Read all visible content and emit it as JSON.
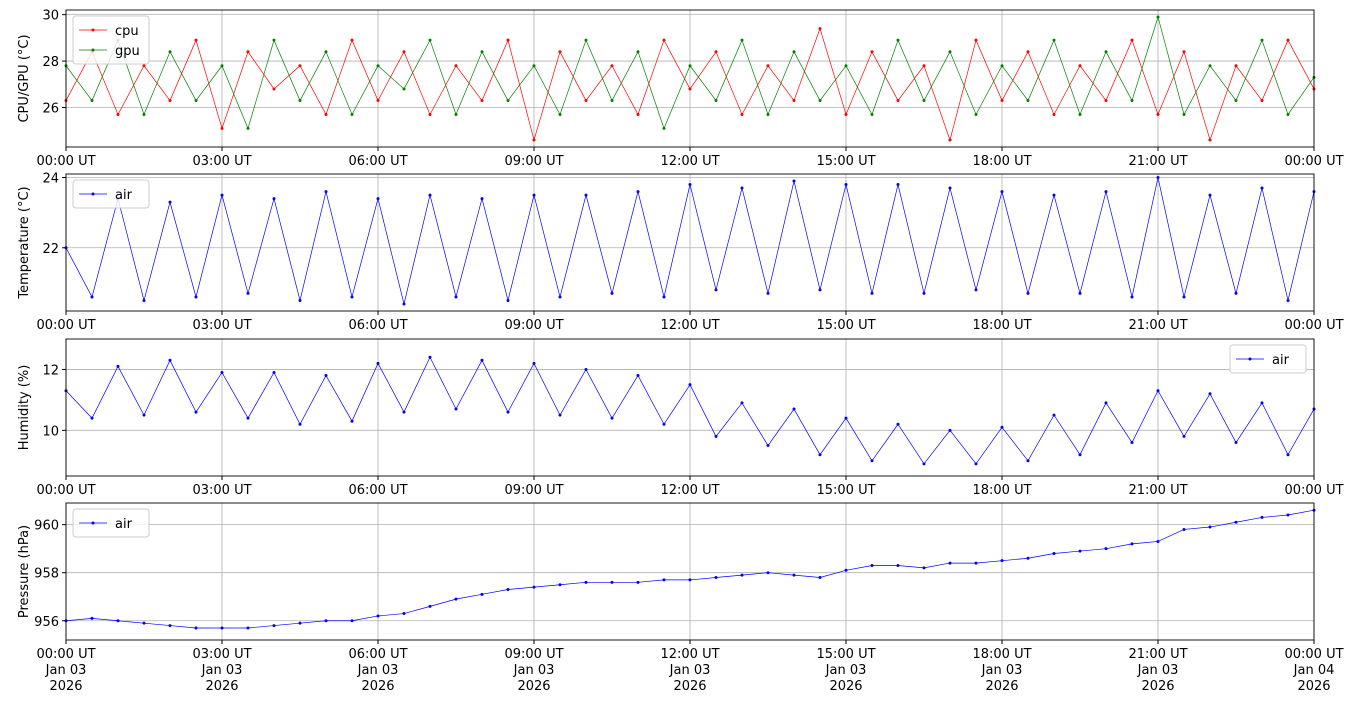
{
  "chart_data": [
    {
      "type": "line",
      "y_label": "CPU/GPU (°C)",
      "legend": "upper left",
      "grid": true,
      "x": [
        0,
        0.5,
        1,
        1.5,
        2,
        2.5,
        3,
        3.5,
        4,
        4.5,
        5,
        5.5,
        6,
        6.5,
        7,
        7.5,
        8,
        8.5,
        9,
        9.5,
        10,
        10.5,
        11,
        11.5,
        12,
        12.5,
        13,
        13.5,
        14,
        14.5,
        15,
        15.5,
        16,
        16.5,
        17,
        17.5,
        18,
        18.5,
        19,
        19.5,
        20,
        20.5,
        21,
        21.5,
        22,
        22.5,
        23,
        23.5,
        24
      ],
      "xlim": [
        0,
        24
      ],
      "xticks": [
        {
          "value": 0,
          "label": "00:00 UT"
        },
        {
          "value": 3,
          "label": "03:00 UT"
        },
        {
          "value": 6,
          "label": "06:00 UT"
        },
        {
          "value": 9,
          "label": "09:00 UT"
        },
        {
          "value": 12,
          "label": "12:00 UT"
        },
        {
          "value": 15,
          "label": "15:00 UT"
        },
        {
          "value": 18,
          "label": "18:00 UT"
        },
        {
          "value": 21,
          "label": "21:00 UT"
        },
        {
          "value": 24,
          "label": "00:00 UT"
        }
      ],
      "ylim": [
        24.3,
        30.2
      ],
      "yticks": [
        26,
        28,
        30
      ],
      "series": [
        {
          "name": "cpu",
          "color": "#ff0000",
          "values": [
            26.3,
            28.4,
            25.7,
            27.8,
            26.3,
            28.9,
            25.1,
            28.4,
            26.8,
            27.8,
            25.7,
            28.9,
            26.3,
            28.4,
            25.7,
            27.8,
            26.3,
            28.9,
            24.6,
            28.4,
            26.3,
            27.8,
            25.7,
            28.9,
            26.8,
            28.4,
            25.7,
            27.8,
            26.3,
            29.4,
            25.7,
            28.4,
            26.3,
            27.8,
            24.6,
            28.9,
            26.3,
            28.4,
            25.7,
            27.8,
            26.3,
            28.9,
            25.7,
            28.4,
            24.6,
            27.8,
            26.3,
            28.9,
            26.8
          ]
        },
        {
          "name": "gpu",
          "color": "#008000",
          "values": [
            27.8,
            26.3,
            28.9,
            25.7,
            28.4,
            26.3,
            27.8,
            25.1,
            28.9,
            26.3,
            28.4,
            25.7,
            27.8,
            26.8,
            28.9,
            25.7,
            28.4,
            26.3,
            27.8,
            25.7,
            28.9,
            26.3,
            28.4,
            25.1,
            27.8,
            26.3,
            28.9,
            25.7,
            28.4,
            26.3,
            27.8,
            25.7,
            28.9,
            26.3,
            28.4,
            25.7,
            27.8,
            26.3,
            28.9,
            25.7,
            28.4,
            26.3,
            29.9,
            25.7,
            27.8,
            26.3,
            28.9,
            25.7,
            27.3
          ]
        }
      ]
    },
    {
      "type": "line",
      "y_label": "Temperature (°C)",
      "legend": "upper left",
      "grid": true,
      "x": [
        0,
        0.5,
        1,
        1.5,
        2,
        2.5,
        3,
        3.5,
        4,
        4.5,
        5,
        5.5,
        6,
        6.5,
        7,
        7.5,
        8,
        8.5,
        9,
        9.5,
        10,
        10.5,
        11,
        11.5,
        12,
        12.5,
        13,
        13.5,
        14,
        14.5,
        15,
        15.5,
        16,
        16.5,
        17,
        17.5,
        18,
        18.5,
        19,
        19.5,
        20,
        20.5,
        21,
        21.5,
        22,
        22.5,
        23,
        23.5,
        24
      ],
      "xlim": [
        0,
        24
      ],
      "xticks": [
        {
          "value": 0,
          "label": "00:00 UT"
        },
        {
          "value": 3,
          "label": "03:00 UT"
        },
        {
          "value": 6,
          "label": "06:00 UT"
        },
        {
          "value": 9,
          "label": "09:00 UT"
        },
        {
          "value": 12,
          "label": "12:00 UT"
        },
        {
          "value": 15,
          "label": "15:00 UT"
        },
        {
          "value": 18,
          "label": "18:00 UT"
        },
        {
          "value": 21,
          "label": "21:00 UT"
        },
        {
          "value": 24,
          "label": "00:00 UT"
        }
      ],
      "ylim": [
        20.2,
        24.1
      ],
      "yticks": [
        22,
        24
      ],
      "series": [
        {
          "name": "air",
          "color": "#0000ff",
          "values": [
            22.0,
            20.6,
            23.4,
            20.5,
            23.3,
            20.6,
            23.5,
            20.7,
            23.4,
            20.5,
            23.6,
            20.6,
            23.4,
            20.4,
            23.5,
            20.6,
            23.4,
            20.5,
            23.5,
            20.6,
            23.5,
            20.7,
            23.6,
            20.6,
            23.8,
            20.8,
            23.7,
            20.7,
            23.9,
            20.8,
            23.8,
            20.7,
            23.8,
            20.7,
            23.7,
            20.8,
            23.6,
            20.7,
            23.5,
            20.7,
            23.6,
            20.6,
            24.0,
            20.6,
            23.5,
            20.7,
            23.7,
            20.5,
            23.6
          ]
        }
      ]
    },
    {
      "type": "line",
      "y_label": "Humidity (%)",
      "legend": "upper right",
      "grid": true,
      "x": [
        0,
        0.5,
        1,
        1.5,
        2,
        2.5,
        3,
        3.5,
        4,
        4.5,
        5,
        5.5,
        6,
        6.5,
        7,
        7.5,
        8,
        8.5,
        9,
        9.5,
        10,
        10.5,
        11,
        11.5,
        12,
        12.5,
        13,
        13.5,
        14,
        14.5,
        15,
        15.5,
        16,
        16.5,
        17,
        17.5,
        18,
        18.5,
        19,
        19.5,
        20,
        20.5,
        21,
        21.5,
        22,
        22.5,
        23,
        23.5,
        24
      ],
      "xlim": [
        0,
        24
      ],
      "xticks": [
        {
          "value": 0,
          "label": "00:00 UT"
        },
        {
          "value": 3,
          "label": "03:00 UT"
        },
        {
          "value": 6,
          "label": "06:00 UT"
        },
        {
          "value": 9,
          "label": "09:00 UT"
        },
        {
          "value": 12,
          "label": "12:00 UT"
        },
        {
          "value": 15,
          "label": "15:00 UT"
        },
        {
          "value": 18,
          "label": "18:00 UT"
        },
        {
          "value": 21,
          "label": "21:00 UT"
        },
        {
          "value": 24,
          "label": "00:00 UT"
        }
      ],
      "ylim": [
        8.5,
        13
      ],
      "yticks": [
        10,
        12
      ],
      "series": [
        {
          "name": "air",
          "color": "#0000ff",
          "values": [
            11.3,
            10.4,
            12.1,
            10.5,
            12.3,
            10.6,
            11.9,
            10.4,
            11.9,
            10.2,
            11.8,
            10.3,
            12.2,
            10.6,
            12.4,
            10.7,
            12.3,
            10.6,
            12.2,
            10.5,
            12.0,
            10.4,
            11.8,
            10.2,
            11.5,
            9.8,
            10.9,
            9.5,
            10.7,
            9.2,
            10.4,
            9.0,
            10.2,
            8.9,
            10.0,
            8.9,
            10.1,
            9.0,
            10.5,
            9.2,
            10.9,
            9.6,
            11.3,
            9.8,
            11.2,
            9.6,
            10.9,
            9.2,
            10.7
          ]
        }
      ]
    },
    {
      "type": "line",
      "y_label": "Pressure (hPa)",
      "legend": "upper left",
      "grid": true,
      "x": [
        0,
        0.5,
        1,
        1.5,
        2,
        2.5,
        3,
        3.5,
        4,
        4.5,
        5,
        5.5,
        6,
        6.5,
        7,
        7.5,
        8,
        8.5,
        9,
        9.5,
        10,
        10.5,
        11,
        11.5,
        12,
        12.5,
        13,
        13.5,
        14,
        14.5,
        15,
        15.5,
        16,
        16.5,
        17,
        17.5,
        18,
        18.5,
        19,
        19.5,
        20,
        20.5,
        21,
        21.5,
        22,
        22.5,
        23,
        23.5,
        24
      ],
      "xlim": [
        0,
        24
      ],
      "xticks": [
        {
          "value": 0,
          "label": "00:00 UT\nJan 03\n2026"
        },
        {
          "value": 3,
          "label": "03:00 UT\nJan 03\n2026"
        },
        {
          "value": 6,
          "label": "06:00 UT\nJan 03\n2026"
        },
        {
          "value": 9,
          "label": "09:00 UT\nJan 03\n2026"
        },
        {
          "value": 12,
          "label": "12:00 UT\nJan 03\n2026"
        },
        {
          "value": 15,
          "label": "15:00 UT\nJan 03\n2026"
        },
        {
          "value": 18,
          "label": "18:00 UT\nJan 03\n2026"
        },
        {
          "value": 21,
          "label": "21:00 UT\nJan 03\n2026"
        },
        {
          "value": 24,
          "label": "00:00 UT\nJan 04\n2026"
        }
      ],
      "ylim": [
        955.2,
        960.9
      ],
      "yticks": [
        956,
        958,
        960
      ],
      "series": [
        {
          "name": "air",
          "color": "#0000ff",
          "values": [
            956.0,
            956.1,
            956.0,
            955.9,
            955.8,
            955.7,
            955.7,
            955.7,
            955.8,
            955.9,
            956.0,
            956.0,
            956.2,
            956.3,
            956.6,
            956.9,
            957.1,
            957.3,
            957.4,
            957.5,
            957.6,
            957.6,
            957.6,
            957.7,
            957.7,
            957.8,
            957.9,
            958.0,
            957.9,
            957.8,
            958.1,
            958.3,
            958.3,
            958.2,
            958.4,
            958.4,
            958.5,
            958.6,
            958.8,
            958.9,
            959.0,
            959.2,
            959.3,
            959.8,
            959.9,
            960.1,
            960.3,
            960.4,
            960.6
          ]
        }
      ]
    }
  ]
}
